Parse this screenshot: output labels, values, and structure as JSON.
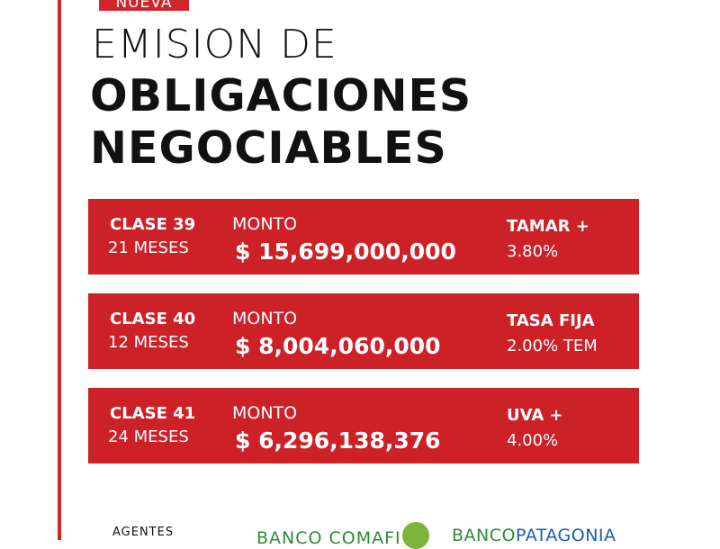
{
  "tag": "NUEVA",
  "title": {
    "line1": "EMISION DE",
    "line2": "OBLIGACIONES",
    "line3": "NEGOCIABLES"
  },
  "classes": [
    {
      "name": "CLASE 39",
      "term": "21 MESES",
      "amount_label": "MONTO",
      "amount": "$ 15,699,000,000",
      "rate_name": "TAMAR +",
      "rate": "3.80%"
    },
    {
      "name": "CLASE 40",
      "term": "12 MESES",
      "amount_label": "MONTO",
      "amount": "$ 8,004,060,000",
      "rate_name": "TASA FIJA",
      "rate": "2.00% TEM"
    },
    {
      "name": "CLASE 41",
      "term": "24 MESES",
      "amount_label": "MONTO",
      "amount": "$ 6,296,138,376",
      "rate_name": "UVA +",
      "rate": "4.00%"
    }
  ],
  "footer": {
    "label": "AGENTES",
    "bank1": "BANCO COMAFI",
    "bank2_part1": "BANCO",
    "bank2_part2": "PATAGONIA"
  }
}
